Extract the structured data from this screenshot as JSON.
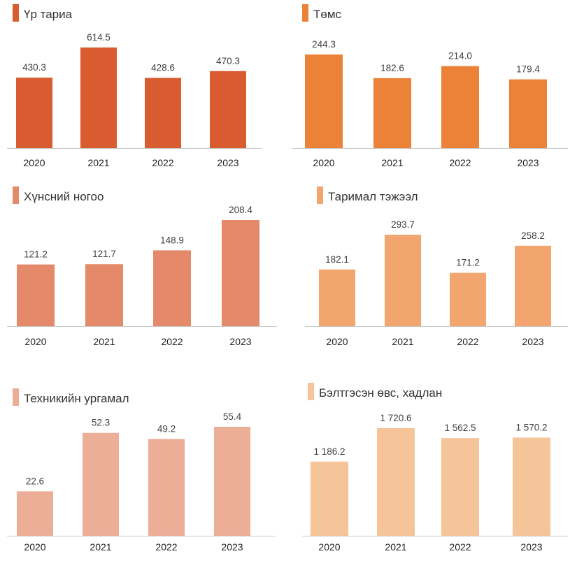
{
  "chart_data": [
    {
      "type": "bar",
      "title": "Үр тариа",
      "color": "#d95b30",
      "categories": [
        "2020",
        "2021",
        "2022",
        "2023"
      ],
      "values": [
        430.3,
        614.5,
        428.6,
        470.3
      ],
      "value_labels": [
        "430.3",
        "614.5",
        "428.6",
        "470.3"
      ],
      "ylim": [
        0,
        614.5
      ]
    },
    {
      "type": "bar",
      "title": "Төмс",
      "color": "#ec8238",
      "categories": [
        "2020",
        "2021",
        "2022",
        "2023"
      ],
      "values": [
        244.3,
        182.6,
        214.0,
        179.4
      ],
      "value_labels": [
        "244.3",
        "182.6",
        "214.0",
        "179.4"
      ],
      "ylim": [
        0,
        244.3
      ]
    },
    {
      "type": "bar",
      "title": "Хүнсний ногоо",
      "color": "#e4896a",
      "categories": [
        "2020",
        "2021",
        "2022",
        "2023"
      ],
      "values": [
        121.2,
        121.7,
        148.9,
        208.4
      ],
      "value_labels": [
        "121.2",
        "121.7",
        "148.9",
        "208.4"
      ],
      "ylim": [
        0,
        208.4
      ]
    },
    {
      "type": "bar",
      "title": "Таримал тэжээл",
      "color": "#f2a56e",
      "categories": [
        "2020",
        "2021",
        "2022",
        "2023"
      ],
      "values": [
        182.1,
        293.7,
        171.2,
        258.2
      ],
      "value_labels": [
        "182.1",
        "293.7",
        "171.2",
        "258.2"
      ],
      "ylim": [
        0,
        293.7
      ]
    },
    {
      "type": "bar",
      "title": "Техникийн ургамал",
      "color": "#edae97",
      "categories": [
        "2020",
        "2021",
        "2022",
        "2023"
      ],
      "values": [
        22.6,
        52.3,
        49.2,
        55.4
      ],
      "value_labels": [
        "22.6",
        "52.3",
        "49.2",
        "55.4"
      ],
      "ylim": [
        0,
        55.4
      ]
    },
    {
      "type": "bar",
      "title": "Бэлтгэсэн өвс, хадлан",
      "color": "#f5c498",
      "categories": [
        "2020",
        "2021",
        "2022",
        "2023"
      ],
      "values": [
        1186.2,
        1720.6,
        1562.5,
        1570.2
      ],
      "value_labels": [
        "1 186.2",
        "1 720.6",
        "1 562.5",
        "1 570.2"
      ],
      "ylim": [
        0,
        1720.6
      ]
    }
  ]
}
